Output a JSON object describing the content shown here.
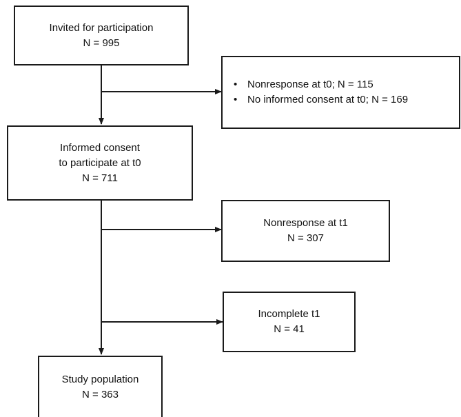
{
  "flowchart": {
    "invited": {
      "title": "Invited for participation",
      "count": "N = 995"
    },
    "exclusion_t0": {
      "items": [
        "Nonresponse at t0; N = 115",
        "No informed consent at t0; N = 169"
      ]
    },
    "consent_t0": {
      "line1": "Informed consent",
      "line2": "to participate at t0",
      "count": "N = 711"
    },
    "nonresponse_t1": {
      "title": "Nonresponse at t1",
      "count": "N = 307"
    },
    "incomplete_t1": {
      "title": "Incomplete t1",
      "count": "N = 41"
    },
    "study_population": {
      "title": "Study population",
      "count": "N = 363"
    }
  }
}
